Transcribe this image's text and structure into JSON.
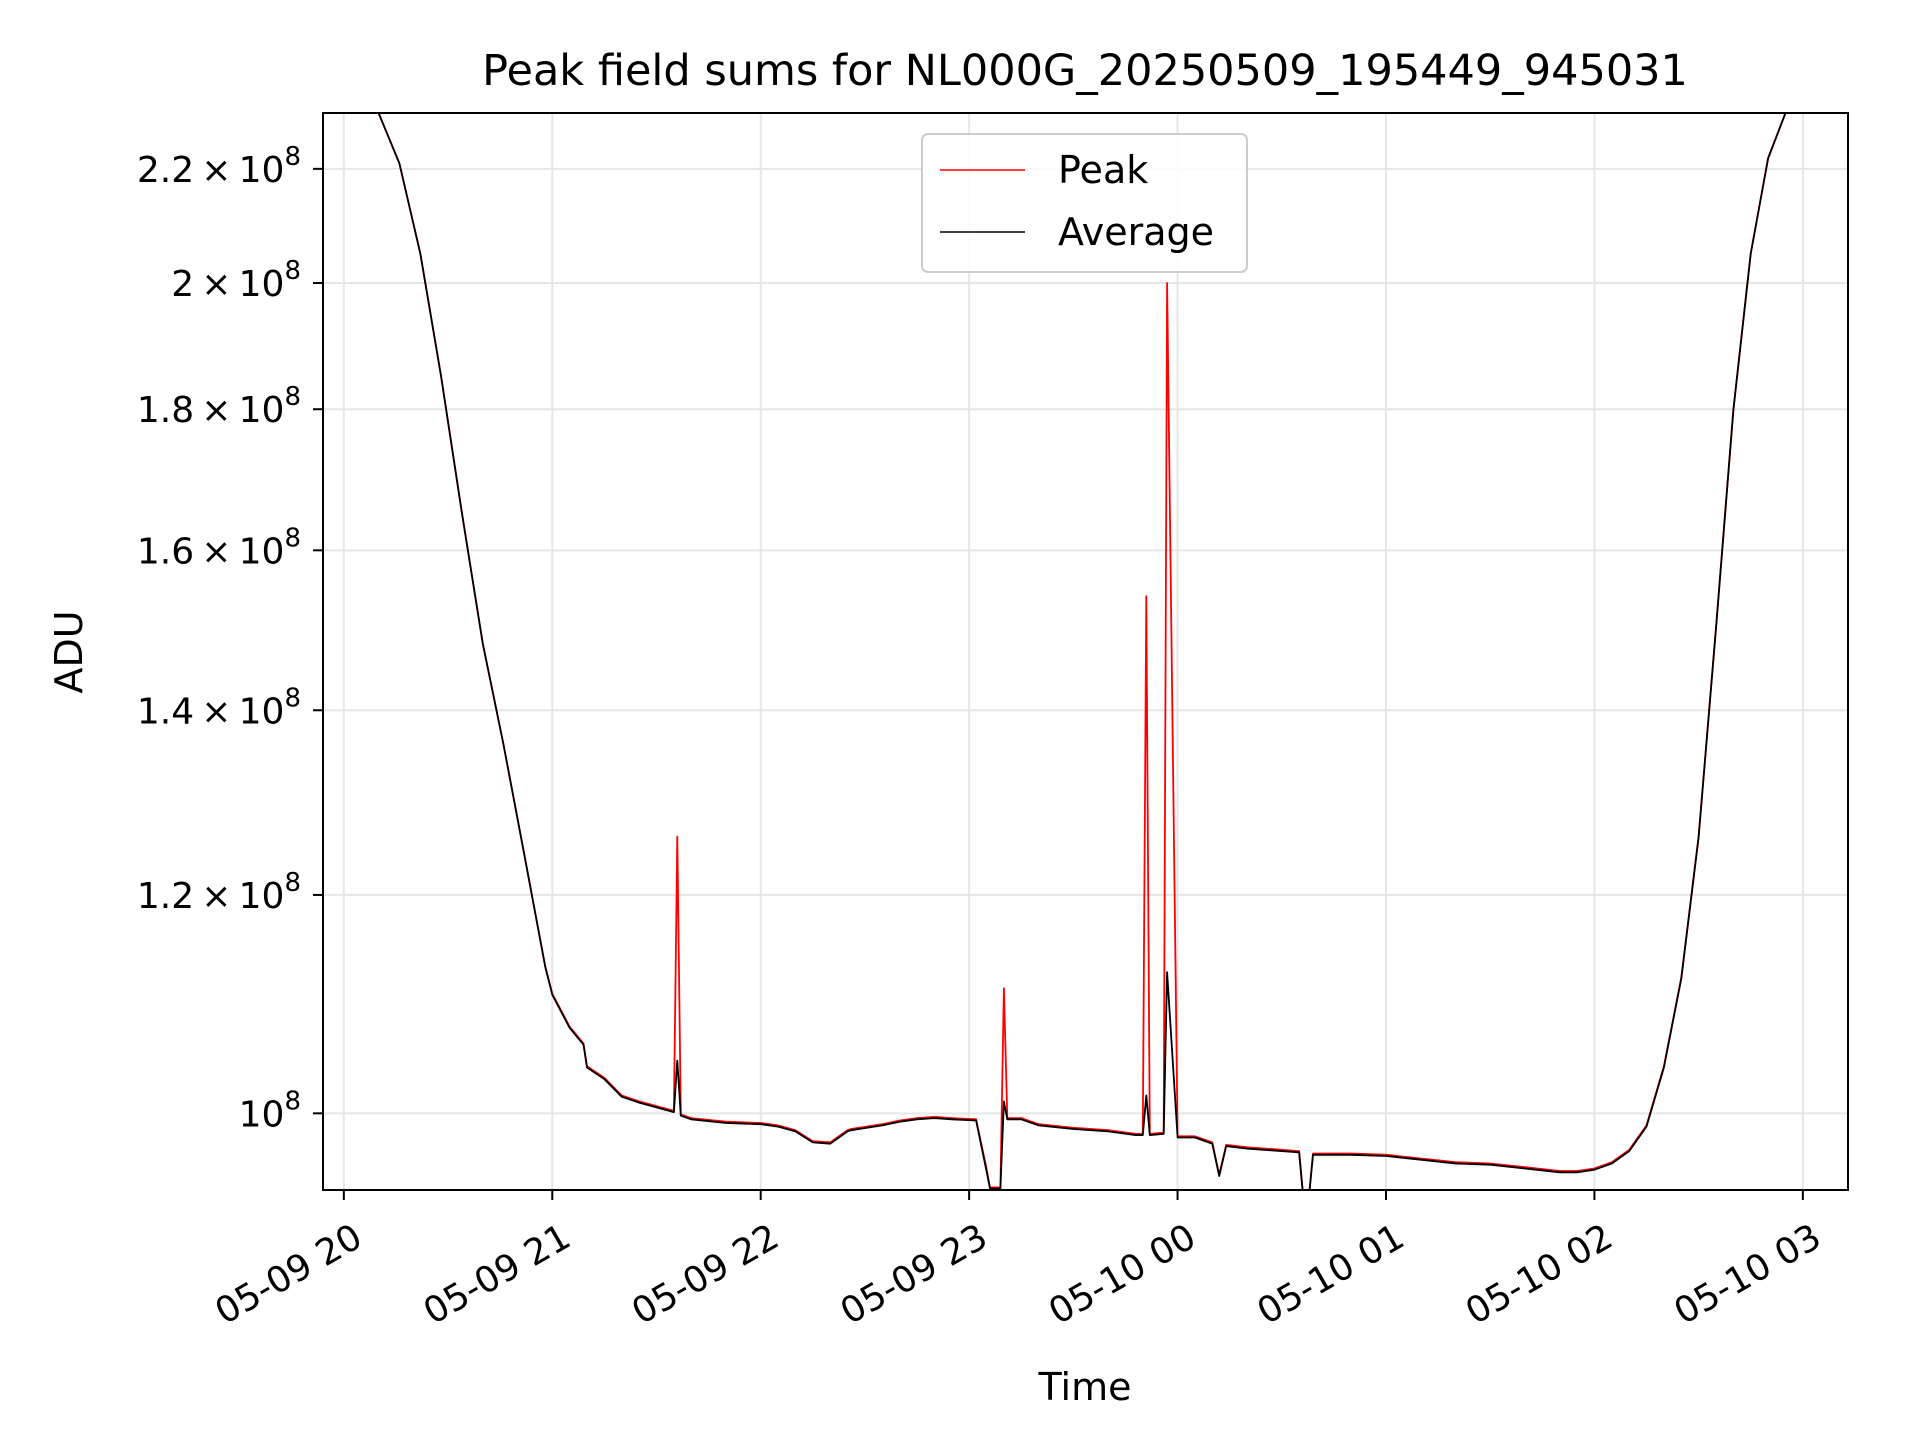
{
  "chart_data": {
    "type": "line",
    "title": "Peak field sums for NL000G_20250509_195449_945031",
    "xlabel": "Time",
    "ylabel": "ADU",
    "y_scale": "log",
    "xlim": [
      "2025-05-09 19:54",
      "2025-05-10 03:13"
    ],
    "ylim": [
      93800000,
      230500000
    ],
    "grid": true,
    "legend_position": "top-center",
    "x_ticks": [
      {
        "value": "2025-05-09 20:00",
        "label": "05-09 20"
      },
      {
        "value": "2025-05-09 21:00",
        "label": "05-09 21"
      },
      {
        "value": "2025-05-09 22:00",
        "label": "05-09 22"
      },
      {
        "value": "2025-05-09 23:00",
        "label": "05-09 23"
      },
      {
        "value": "2025-05-10 00:00",
        "label": "05-10 00"
      },
      {
        "value": "2025-05-10 01:00",
        "label": "05-10 01"
      },
      {
        "value": "2025-05-10 02:00",
        "label": "05-10 02"
      },
      {
        "value": "2025-05-10 03:00",
        "label": "05-10 03"
      }
    ],
    "y_ticks": [
      {
        "value": 100000000,
        "mantissa": "",
        "exponent": "8"
      },
      {
        "value": 120000000,
        "mantissa": "1.2",
        "exponent": "8"
      },
      {
        "value": 140000000,
        "mantissa": "1.4",
        "exponent": "8"
      },
      {
        "value": 160000000,
        "mantissa": "1.6",
        "exponent": "8"
      },
      {
        "value": 180000000,
        "mantissa": "1.8",
        "exponent": "8"
      },
      {
        "value": 200000000,
        "mantissa": "2",
        "exponent": "8"
      },
      {
        "value": 220000000,
        "mantissa": "2.2",
        "exponent": "8"
      }
    ],
    "series": [
      {
        "name": "Peak",
        "color": "#ff0000",
        "x": [
          "2025-05-09 19:54",
          "2025-05-09 20:10",
          "2025-05-09 20:16",
          "2025-05-09 20:22",
          "2025-05-09 20:28",
          "2025-05-09 20:34",
          "2025-05-09 20:40",
          "2025-05-09 20:46",
          "2025-05-09 20:52",
          "2025-05-09 20:58",
          "2025-05-09 21:00",
          "2025-05-09 21:05",
          "2025-05-09 21:09",
          "2025-05-09 21:10",
          "2025-05-09 21:15",
          "2025-05-09 21:20",
          "2025-05-09 21:25",
          "2025-05-09 21:35",
          "2025-05-09 21:36",
          "2025-05-09 21:37",
          "2025-05-09 21:40",
          "2025-05-09 21:50",
          "2025-05-09 22:00",
          "2025-05-09 22:05",
          "2025-05-09 22:10",
          "2025-05-09 22:15",
          "2025-05-09 22:20",
          "2025-05-09 22:25",
          "2025-05-09 22:26",
          "2025-05-09 22:35",
          "2025-05-09 22:40",
          "2025-05-09 22:45",
          "2025-05-09 22:50",
          "2025-05-09 22:55",
          "2025-05-09 23:02",
          "2025-05-09 23:05",
          "2025-05-09 23:06",
          "2025-05-09 23:09",
          "2025-05-09 23:10",
          "2025-05-09 23:11",
          "2025-05-09 23:15",
          "2025-05-09 23:20",
          "2025-05-09 23:30",
          "2025-05-09 23:40",
          "2025-05-09 23:48",
          "2025-05-09 23:50",
          "2025-05-09 23:51",
          "2025-05-09 23:52",
          "2025-05-09 23:56",
          "2025-05-09 23:57",
          "2025-05-10 00:00",
          "2025-05-10 00:05",
          "2025-05-10 00:10",
          "2025-05-10 00:12",
          "2025-05-10 00:14",
          "2025-05-10 00:20",
          "2025-05-10 00:30",
          "2025-05-10 00:35",
          "2025-05-10 00:36",
          "2025-05-10 00:38",
          "2025-05-10 00:39",
          "2025-05-10 00:40",
          "2025-05-10 00:50",
          "2025-05-10 01:00",
          "2025-05-10 01:10",
          "2025-05-10 01:20",
          "2025-05-10 01:30",
          "2025-05-10 01:40",
          "2025-05-10 01:50",
          "2025-05-10 01:55",
          "2025-05-10 02:00",
          "2025-05-10 02:05",
          "2025-05-10 02:10",
          "2025-05-10 02:15",
          "2025-05-10 02:20",
          "2025-05-10 02:25",
          "2025-05-10 02:30",
          "2025-05-10 02:35",
          "2025-05-10 02:40",
          "2025-05-10 02:45",
          "2025-05-10 02:50",
          "2025-05-10 02:55",
          "2025-05-10 03:00"
        ],
        "y": [
          230500000,
          230500000,
          221000000,
          205000000,
          185000000,
          165000000,
          148000000,
          136000000,
          124000000,
          113000000,
          110500000,
          107500000,
          106000000,
          104000000,
          103000000,
          101500000,
          101000000,
          100200000,
          126000000,
          99900000,
          99600000,
          99300000,
          99200000,
          99000000,
          98600000,
          97700000,
          97600000,
          98600000,
          98700000,
          99100000,
          99400000,
          99600000,
          99700000,
          99600000,
          99500000,
          95500000,
          94000000,
          94000000,
          111000000,
          99600000,
          99600000,
          99100000,
          98800000,
          98600000,
          98300000,
          98300000,
          154000000,
          98300000,
          98400000,
          200000000,
          98100000,
          98100000,
          97600000,
          95000000,
          97400000,
          97200000,
          97000000,
          96900000,
          93800000,
          93800000,
          96700000,
          96700000,
          96700000,
          96600000,
          96300000,
          96000000,
          95900000,
          95600000,
          95300000,
          95300000,
          95500000,
          96000000,
          97000000,
          99000000,
          104000000,
          112000000,
          126000000,
          150000000,
          180000000,
          205000000,
          222000000,
          230500000,
          230500000
        ]
      },
      {
        "name": "Average",
        "color": "#000000",
        "x": [
          "2025-05-09 19:54",
          "2025-05-09 20:10",
          "2025-05-09 20:16",
          "2025-05-09 20:22",
          "2025-05-09 20:28",
          "2025-05-09 20:34",
          "2025-05-09 20:40",
          "2025-05-09 20:46",
          "2025-05-09 20:52",
          "2025-05-09 20:58",
          "2025-05-09 21:00",
          "2025-05-09 21:05",
          "2025-05-09 21:09",
          "2025-05-09 21:10",
          "2025-05-09 21:15",
          "2025-05-09 21:20",
          "2025-05-09 21:25",
          "2025-05-09 21:35",
          "2025-05-09 21:36",
          "2025-05-09 21:37",
          "2025-05-09 21:40",
          "2025-05-09 21:50",
          "2025-05-09 22:00",
          "2025-05-09 22:05",
          "2025-05-09 22:10",
          "2025-05-09 22:15",
          "2025-05-09 22:20",
          "2025-05-09 22:25",
          "2025-05-09 22:26",
          "2025-05-09 22:35",
          "2025-05-09 22:40",
          "2025-05-09 22:45",
          "2025-05-09 22:50",
          "2025-05-09 22:55",
          "2025-05-09 23:02",
          "2025-05-09 23:05",
          "2025-05-09 23:06",
          "2025-05-09 23:09",
          "2025-05-09 23:10",
          "2025-05-09 23:11",
          "2025-05-09 23:15",
          "2025-05-09 23:20",
          "2025-05-09 23:30",
          "2025-05-09 23:40",
          "2025-05-09 23:48",
          "2025-05-09 23:50",
          "2025-05-09 23:51",
          "2025-05-09 23:52",
          "2025-05-09 23:56",
          "2025-05-09 23:57",
          "2025-05-10 00:00",
          "2025-05-10 00:05",
          "2025-05-10 00:10",
          "2025-05-10 00:12",
          "2025-05-10 00:14",
          "2025-05-10 00:20",
          "2025-05-10 00:30",
          "2025-05-10 00:35",
          "2025-05-10 00:36",
          "2025-05-10 00:38",
          "2025-05-10 00:39",
          "2025-05-10 00:40",
          "2025-05-10 00:50",
          "2025-05-10 01:00",
          "2025-05-10 01:10",
          "2025-05-10 01:20",
          "2025-05-10 01:30",
          "2025-05-10 01:40",
          "2025-05-10 01:50",
          "2025-05-10 01:55",
          "2025-05-10 02:00",
          "2025-05-10 02:05",
          "2025-05-10 02:10",
          "2025-05-10 02:15",
          "2025-05-10 02:20",
          "2025-05-10 02:25",
          "2025-05-10 02:30",
          "2025-05-10 02:35",
          "2025-05-10 02:40",
          "2025-05-10 02:45",
          "2025-05-10 02:50",
          "2025-05-10 02:55",
          "2025-05-10 03:00"
        ],
        "y": [
          230500000,
          230500000,
          221000000,
          205000000,
          185000000,
          165000000,
          148000000,
          136000000,
          124000000,
          113000000,
          110400000,
          107400000,
          105900000,
          103900000,
          102900000,
          101400000,
          100900000,
          100100000,
          104500000,
          99800000,
          99500000,
          99200000,
          99100000,
          98900000,
          98500000,
          97600000,
          97500000,
          98500000,
          98600000,
          99000000,
          99300000,
          99500000,
          99600000,
          99500000,
          99400000,
          95300000,
          93900000,
          93900000,
          101000000,
          99500000,
          99500000,
          99000000,
          98700000,
          98500000,
          98200000,
          98200000,
          101500000,
          98200000,
          98300000,
          112500000,
          98000000,
          98000000,
          97500000,
          94900000,
          97300000,
          97100000,
          96900000,
          96800000,
          93800000,
          93800000,
          96600000,
          96600000,
          96600000,
          96500000,
          96200000,
          95900000,
          95800000,
          95500000,
          95200000,
          95200000,
          95400000,
          95900000,
          96900000,
          98900000,
          103900000,
          111900000,
          125900000,
          149900000,
          179900000,
          204900000,
          221900000,
          230500000,
          230500000
        ]
      }
    ]
  }
}
